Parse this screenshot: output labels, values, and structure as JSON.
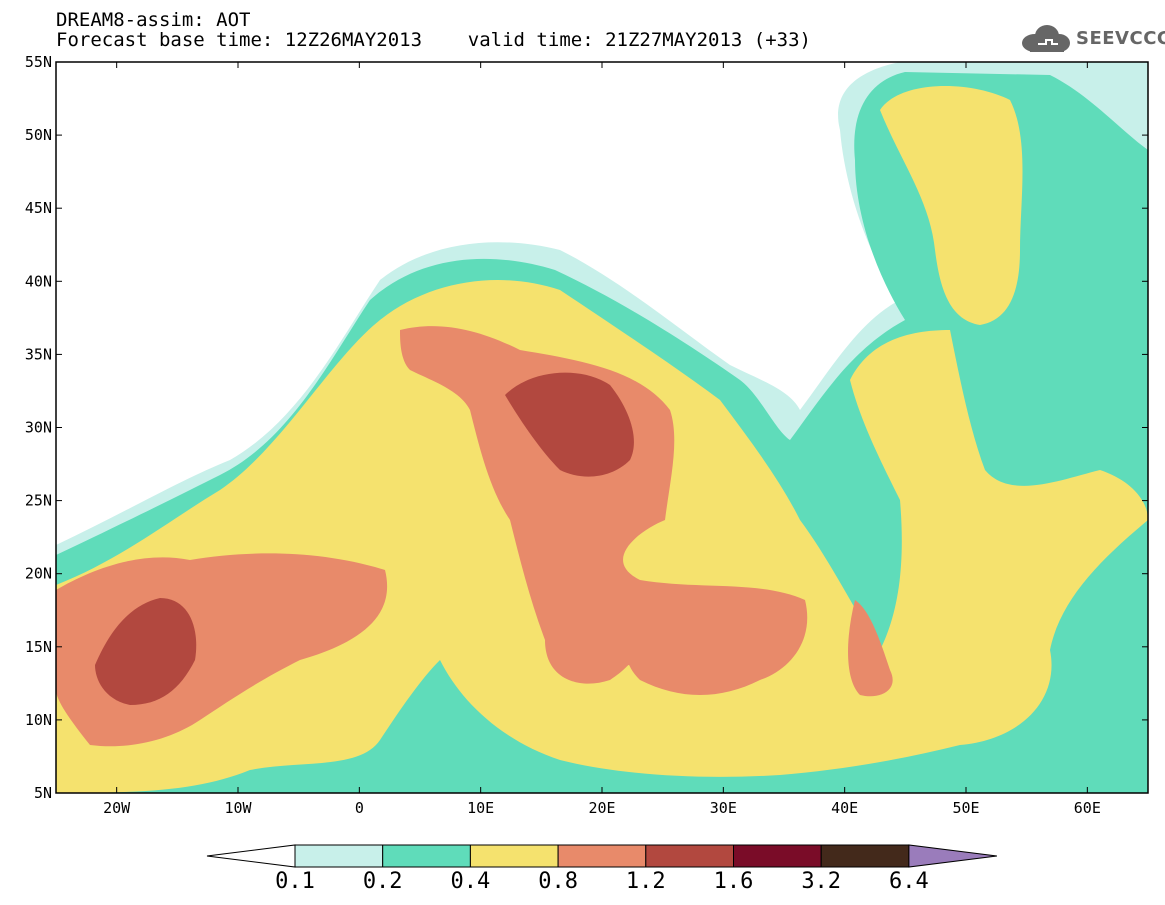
{
  "header": {
    "line1": "DREAM8-assim: AOT",
    "line2": "Forecast base time: 12Z26MAY2013    valid time: 21Z27MAY2013 (+33)",
    "logo_text": "SEEVCCC"
  },
  "map": {
    "lat_labels": [
      "55N",
      "50N",
      "45N",
      "40N",
      "35N",
      "30N",
      "25N",
      "20N",
      "15N",
      "10N",
      "5N"
    ],
    "lon_labels": [
      "20W",
      "10W",
      "0",
      "10E",
      "20E",
      "30E",
      "40E",
      "50E",
      "60E"
    ]
  },
  "colorbar": {
    "labels": [
      "0.1",
      "0.2",
      "0.4",
      "0.8",
      "1.2",
      "1.6",
      "3.2",
      "6.4"
    ],
    "colors": [
      "#ffffff",
      "#c8f0ea",
      "#5fdcba",
      "#f5e26e",
      "#e88a6a",
      "#b2483f",
      "#7a0c28",
      "#43291b",
      "#9a7cbb"
    ]
  }
}
